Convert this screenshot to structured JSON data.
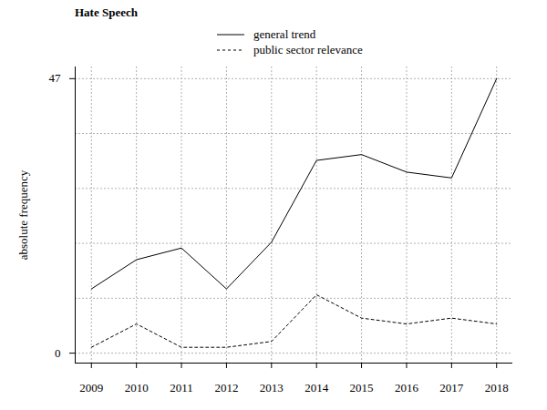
{
  "chart_data": {
    "type": "line",
    "title": "Hate Speech",
    "y_label": "absolute frequency",
    "x": [
      2009,
      2010,
      2011,
      2012,
      2013,
      2014,
      2015,
      2016,
      2017,
      2018
    ],
    "series": [
      {
        "name": "general trend",
        "color": "#000000",
        "line_style": "solid",
        "values": [
          11,
          16,
          18,
          11,
          19,
          33,
          34,
          31,
          30,
          47
        ]
      },
      {
        "name": "public sector relevance",
        "color": "#000000",
        "line_style": "dotted",
        "values": [
          1,
          5,
          1,
          1,
          2,
          10,
          6,
          5,
          6,
          5
        ]
      }
    ],
    "xlim": [
      2008.64,
      2018.36
    ],
    "xticks": [
      2009,
      2010,
      2011,
      2012,
      2013,
      2014,
      2015,
      2016,
      2017,
      2018
    ],
    "ylim": [
      -1.7,
      49
    ],
    "yticks": [
      0,
      {
        "value": 9.4,
        "label": null
      },
      {
        "value": 18.8,
        "label": null
      },
      {
        "value": 28.2,
        "label": null
      },
      {
        "value": 37.6,
        "label": null
      },
      47
    ],
    "grid": true,
    "legend": "top"
  }
}
